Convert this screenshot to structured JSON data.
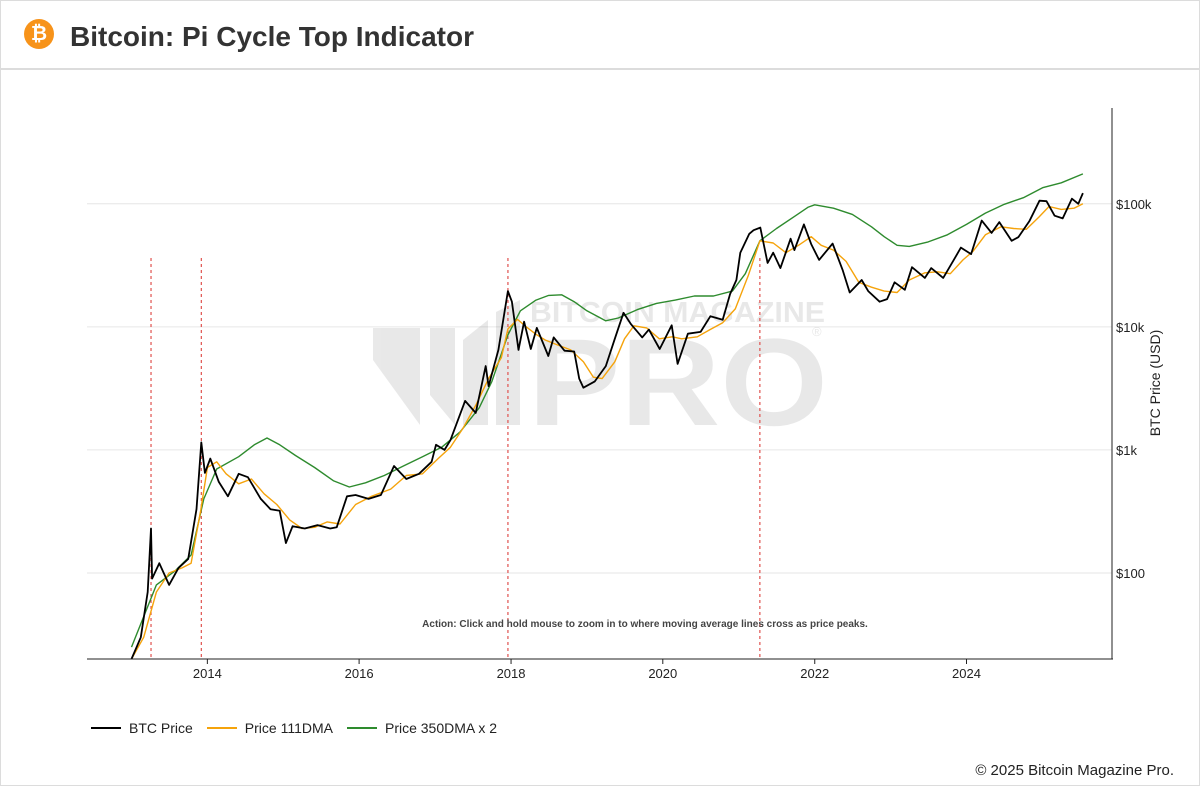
{
  "header": {
    "title": "Bitcoin: Pi Cycle Top Indicator",
    "logo_glyph": "₿",
    "logo_color": "#f7931a",
    "logo_icon": "bitcoin-icon"
  },
  "watermark": {
    "brand": "BITCOIN MAGAZINE",
    "big": "PRO",
    "mark": "®"
  },
  "footer": {
    "copyright": "© 2025 Bitcoin Magazine Pro."
  },
  "chart_data": {
    "type": "line",
    "title": "Bitcoin: Pi Cycle Top Indicator",
    "xlabel": "",
    "ylabel": "BTC Price (USD)",
    "y_scale": "log",
    "ylim": [
      20,
      600000
    ],
    "xlim": [
      "2012-06-01",
      "2025-12-01"
    ],
    "x_ticks": [
      {
        "date": "2014-01-01",
        "label": "2014"
      },
      {
        "date": "2016-01-01",
        "label": "2016"
      },
      {
        "date": "2018-01-01",
        "label": "2018"
      },
      {
        "date": "2020-01-01",
        "label": "2020"
      },
      {
        "date": "2022-01-01",
        "label": "2022"
      },
      {
        "date": "2024-01-01",
        "label": "2024"
      }
    ],
    "y_ticks": [
      {
        "value": 100,
        "label": "$100"
      },
      {
        "value": 1000,
        "label": "$1k"
      },
      {
        "value": 10000,
        "label": "$10k"
      },
      {
        "value": 100000,
        "label": "$100k"
      }
    ],
    "grid": true,
    "legend_position": "bottom-left",
    "annotation": "Action: Click and hold mouse to zoom in to where moving average lines cross as price peaks.",
    "crossover_dates": [
      "2013-04-05",
      "2013-12-03",
      "2017-12-17",
      "2021-04-12"
    ],
    "series": [
      {
        "name": "BTC Price",
        "color": "#000000",
        "points": [
          [
            "2013-01-01",
            20
          ],
          [
            "2013-02-15",
            30
          ],
          [
            "2013-03-20",
            70
          ],
          [
            "2013-04-05",
            230
          ],
          [
            "2013-04-10",
            90
          ],
          [
            "2013-05-15",
            120
          ],
          [
            "2013-07-01",
            80
          ],
          [
            "2013-08-15",
            110
          ],
          [
            "2013-10-01",
            130
          ],
          [
            "2013-11-10",
            330
          ],
          [
            "2013-12-03",
            1150
          ],
          [
            "2013-12-20",
            650
          ],
          [
            "2014-01-15",
            850
          ],
          [
            "2014-02-25",
            550
          ],
          [
            "2014-04-10",
            420
          ],
          [
            "2014-06-01",
            640
          ],
          [
            "2014-07-15",
            600
          ],
          [
            "2014-09-15",
            400
          ],
          [
            "2014-11-01",
            330
          ],
          [
            "2014-12-15",
            320
          ],
          [
            "2015-01-14",
            175
          ],
          [
            "2015-02-15",
            240
          ],
          [
            "2015-04-15",
            230
          ],
          [
            "2015-06-15",
            245
          ],
          [
            "2015-08-15",
            230
          ],
          [
            "2015-09-15",
            235
          ],
          [
            "2015-11-04",
            420
          ],
          [
            "2015-12-15",
            430
          ],
          [
            "2016-02-15",
            400
          ],
          [
            "2016-04-15",
            430
          ],
          [
            "2016-06-17",
            740
          ],
          [
            "2016-08-15",
            580
          ],
          [
            "2016-10-15",
            640
          ],
          [
            "2016-12-15",
            800
          ],
          [
            "2017-01-05",
            1100
          ],
          [
            "2017-02-15",
            1000
          ],
          [
            "2017-03-15",
            1200
          ],
          [
            "2017-05-25",
            2500
          ],
          [
            "2017-07-15",
            2000
          ],
          [
            "2017-09-01",
            4800
          ],
          [
            "2017-09-15",
            3300
          ],
          [
            "2017-11-01",
            6500
          ],
          [
            "2017-12-17",
            19500
          ],
          [
            "2018-01-05",
            16000
          ],
          [
            "2018-02-06",
            6500
          ],
          [
            "2018-03-05",
            11000
          ],
          [
            "2018-04-06",
            6600
          ],
          [
            "2018-05-05",
            9800
          ],
          [
            "2018-06-29",
            5800
          ],
          [
            "2018-07-25",
            8200
          ],
          [
            "2018-09-15",
            6400
          ],
          [
            "2018-11-01",
            6300
          ],
          [
            "2018-11-25",
            3800
          ],
          [
            "2018-12-15",
            3200
          ],
          [
            "2019-02-08",
            3600
          ],
          [
            "2019-04-02",
            4800
          ],
          [
            "2019-05-15",
            8000
          ],
          [
            "2019-06-26",
            13000
          ],
          [
            "2019-08-01",
            10500
          ],
          [
            "2019-09-24",
            8200
          ],
          [
            "2019-10-26",
            9500
          ],
          [
            "2019-12-17",
            6600
          ],
          [
            "2020-02-13",
            10300
          ],
          [
            "2020-03-12",
            5000
          ],
          [
            "2020-05-01",
            8800
          ],
          [
            "2020-07-01",
            9100
          ],
          [
            "2020-08-17",
            12200
          ],
          [
            "2020-10-15",
            11400
          ],
          [
            "2020-11-20",
            18500
          ],
          [
            "2020-12-20",
            24000
          ],
          [
            "2021-01-08",
            40000
          ],
          [
            "2021-02-20",
            57000
          ],
          [
            "2021-03-13",
            61000
          ],
          [
            "2021-04-14",
            64000
          ],
          [
            "2021-05-19",
            33000
          ],
          [
            "2021-06-15",
            40000
          ],
          [
            "2021-07-20",
            30000
          ],
          [
            "2021-09-07",
            52000
          ],
          [
            "2021-09-25",
            42000
          ],
          [
            "2021-11-10",
            68000
          ],
          [
            "2021-12-15",
            47000
          ],
          [
            "2022-01-22",
            35000
          ],
          [
            "2022-03-28",
            47500
          ],
          [
            "2022-05-15",
            29000
          ],
          [
            "2022-06-18",
            19000
          ],
          [
            "2022-08-15",
            24000
          ],
          [
            "2022-09-15",
            19500
          ],
          [
            "2022-11-09",
            16000
          ],
          [
            "2022-12-15",
            16800
          ],
          [
            "2023-01-20",
            23000
          ],
          [
            "2023-03-10",
            20000
          ],
          [
            "2023-04-14",
            30500
          ],
          [
            "2023-06-15",
            25000
          ],
          [
            "2023-07-15",
            30000
          ],
          [
            "2023-09-11",
            25000
          ],
          [
            "2023-10-30",
            34500
          ],
          [
            "2023-12-05",
            44000
          ],
          [
            "2024-01-23",
            39000
          ],
          [
            "2024-03-14",
            73000
          ],
          [
            "2024-05-01",
            58000
          ],
          [
            "2024-06-07",
            71000
          ],
          [
            "2024-08-05",
            50000
          ],
          [
            "2024-09-06",
            53500
          ],
          [
            "2024-10-29",
            72000
          ],
          [
            "2024-12-17",
            106000
          ],
          [
            "2025-01-20",
            105000
          ],
          [
            "2025-02-28",
            80000
          ],
          [
            "2025-04-08",
            76000
          ],
          [
            "2025-05-22",
            110000
          ],
          [
            "2025-06-22",
            100000
          ],
          [
            "2025-07-14",
            122000
          ]
        ]
      },
      {
        "name": "Price 111DMA",
        "color": "#f5a30b",
        "points": [
          [
            "2013-01-01",
            15
          ],
          [
            "2013-03-01",
            30
          ],
          [
            "2013-05-01",
            70
          ],
          [
            "2013-07-01",
            100
          ],
          [
            "2013-09-01",
            110
          ],
          [
            "2013-10-15",
            120
          ],
          [
            "2013-12-01",
            330
          ],
          [
            "2014-01-01",
            720
          ],
          [
            "2014-02-15",
            800
          ],
          [
            "2014-04-01",
            640
          ],
          [
            "2014-06-01",
            530
          ],
          [
            "2014-08-01",
            580
          ],
          [
            "2014-10-01",
            440
          ],
          [
            "2014-12-01",
            360
          ],
          [
            "2015-02-01",
            270
          ],
          [
            "2015-04-01",
            230
          ],
          [
            "2015-06-01",
            235
          ],
          [
            "2015-08-01",
            260
          ],
          [
            "2015-10-01",
            250
          ],
          [
            "2015-12-15",
            360
          ],
          [
            "2016-03-01",
            420
          ],
          [
            "2016-06-01",
            480
          ],
          [
            "2016-08-15",
            620
          ],
          [
            "2016-11-01",
            640
          ],
          [
            "2017-01-15",
            850
          ],
          [
            "2017-03-15",
            1050
          ],
          [
            "2017-05-15",
            1500
          ],
          [
            "2017-07-15",
            2300
          ],
          [
            "2017-09-15",
            3800
          ],
          [
            "2017-11-15",
            5600
          ],
          [
            "2017-12-17",
            9600
          ],
          [
            "2018-02-01",
            11500
          ],
          [
            "2018-03-15",
            10000
          ],
          [
            "2018-05-01",
            8700
          ],
          [
            "2018-06-15",
            7800
          ],
          [
            "2018-08-15",
            7100
          ],
          [
            "2018-10-15",
            6500
          ],
          [
            "2018-12-15",
            5200
          ],
          [
            "2019-02-01",
            3900
          ],
          [
            "2019-03-15",
            3800
          ],
          [
            "2019-05-15",
            5200
          ],
          [
            "2019-07-01",
            8000
          ],
          [
            "2019-08-15",
            10200
          ],
          [
            "2019-10-15",
            9800
          ],
          [
            "2019-12-15",
            8000
          ],
          [
            "2020-02-15",
            8300
          ],
          [
            "2020-04-01",
            8000
          ],
          [
            "2020-06-15",
            8300
          ],
          [
            "2020-08-15",
            9500
          ],
          [
            "2020-10-15",
            10800
          ],
          [
            "2020-12-15",
            14000
          ],
          [
            "2021-02-15",
            26000
          ],
          [
            "2021-04-12",
            50000
          ],
          [
            "2021-06-15",
            48000
          ],
          [
            "2021-08-15",
            40000
          ],
          [
            "2021-10-15",
            46000
          ],
          [
            "2021-12-15",
            54000
          ],
          [
            "2022-02-01",
            46000
          ],
          [
            "2022-04-01",
            42000
          ],
          [
            "2022-06-01",
            34000
          ],
          [
            "2022-08-01",
            23000
          ],
          [
            "2022-10-01",
            21000
          ],
          [
            "2022-12-01",
            19500
          ],
          [
            "2023-02-01",
            19000
          ],
          [
            "2023-04-01",
            24000
          ],
          [
            "2023-06-15",
            27500
          ],
          [
            "2023-08-15",
            28000
          ],
          [
            "2023-10-15",
            27000
          ],
          [
            "2023-12-15",
            35000
          ],
          [
            "2024-02-01",
            41000
          ],
          [
            "2024-04-01",
            56000
          ],
          [
            "2024-06-15",
            65000
          ],
          [
            "2024-08-15",
            63000
          ],
          [
            "2024-10-15",
            62000
          ],
          [
            "2024-12-15",
            78000
          ],
          [
            "2025-02-01",
            95000
          ],
          [
            "2025-04-01",
            90000
          ],
          [
            "2025-06-01",
            92000
          ],
          [
            "2025-07-14",
            100000
          ]
        ]
      },
      {
        "name": "Price 350DMA x 2",
        "color": "#2e8b2e",
        "points": [
          [
            "2013-01-01",
            25
          ],
          [
            "2013-05-01",
            80
          ],
          [
            "2013-08-01",
            105
          ],
          [
            "2013-10-15",
            140
          ],
          [
            "2013-12-15",
            400
          ],
          [
            "2014-02-15",
            700
          ],
          [
            "2014-06-01",
            880
          ],
          [
            "2014-08-15",
            1100
          ],
          [
            "2014-10-15",
            1250
          ],
          [
            "2014-12-15",
            1100
          ],
          [
            "2015-03-01",
            900
          ],
          [
            "2015-06-01",
            720
          ],
          [
            "2015-09-01",
            560
          ],
          [
            "2015-11-15",
            500
          ],
          [
            "2016-02-01",
            540
          ],
          [
            "2016-05-01",
            620
          ],
          [
            "2016-08-01",
            740
          ],
          [
            "2016-11-01",
            880
          ],
          [
            "2017-02-01",
            1050
          ],
          [
            "2017-05-01",
            1400
          ],
          [
            "2017-08-01",
            2200
          ],
          [
            "2017-10-01",
            3600
          ],
          [
            "2017-12-17",
            8600
          ],
          [
            "2018-02-15",
            13500
          ],
          [
            "2018-05-01",
            16500
          ],
          [
            "2018-07-01",
            18000
          ],
          [
            "2018-09-01",
            18200
          ],
          [
            "2018-11-01",
            16000
          ],
          [
            "2019-01-01",
            13500
          ],
          [
            "2019-04-01",
            11200
          ],
          [
            "2019-06-01",
            11800
          ],
          [
            "2019-09-01",
            13800
          ],
          [
            "2019-12-01",
            15500
          ],
          [
            "2020-03-01",
            16500
          ],
          [
            "2020-06-01",
            17800
          ],
          [
            "2020-09-01",
            17800
          ],
          [
            "2020-12-01",
            19500
          ],
          [
            "2021-02-01",
            27000
          ],
          [
            "2021-04-12",
            50000
          ],
          [
            "2021-07-01",
            63000
          ],
          [
            "2021-10-01",
            80000
          ],
          [
            "2021-12-01",
            94000
          ],
          [
            "2022-01-01",
            98000
          ],
          [
            "2022-04-01",
            92000
          ],
          [
            "2022-07-01",
            82000
          ],
          [
            "2022-10-01",
            65000
          ],
          [
            "2022-12-01",
            54000
          ],
          [
            "2023-02-01",
            46000
          ],
          [
            "2023-04-01",
            45000
          ],
          [
            "2023-07-01",
            49000
          ],
          [
            "2023-10-01",
            56000
          ],
          [
            "2024-01-01",
            68000
          ],
          [
            "2024-04-01",
            84000
          ],
          [
            "2024-07-01",
            99000
          ],
          [
            "2024-10-01",
            112000
          ],
          [
            "2025-01-01",
            135000
          ],
          [
            "2025-04-01",
            148000
          ],
          [
            "2025-07-14",
            175000
          ]
        ]
      }
    ]
  }
}
